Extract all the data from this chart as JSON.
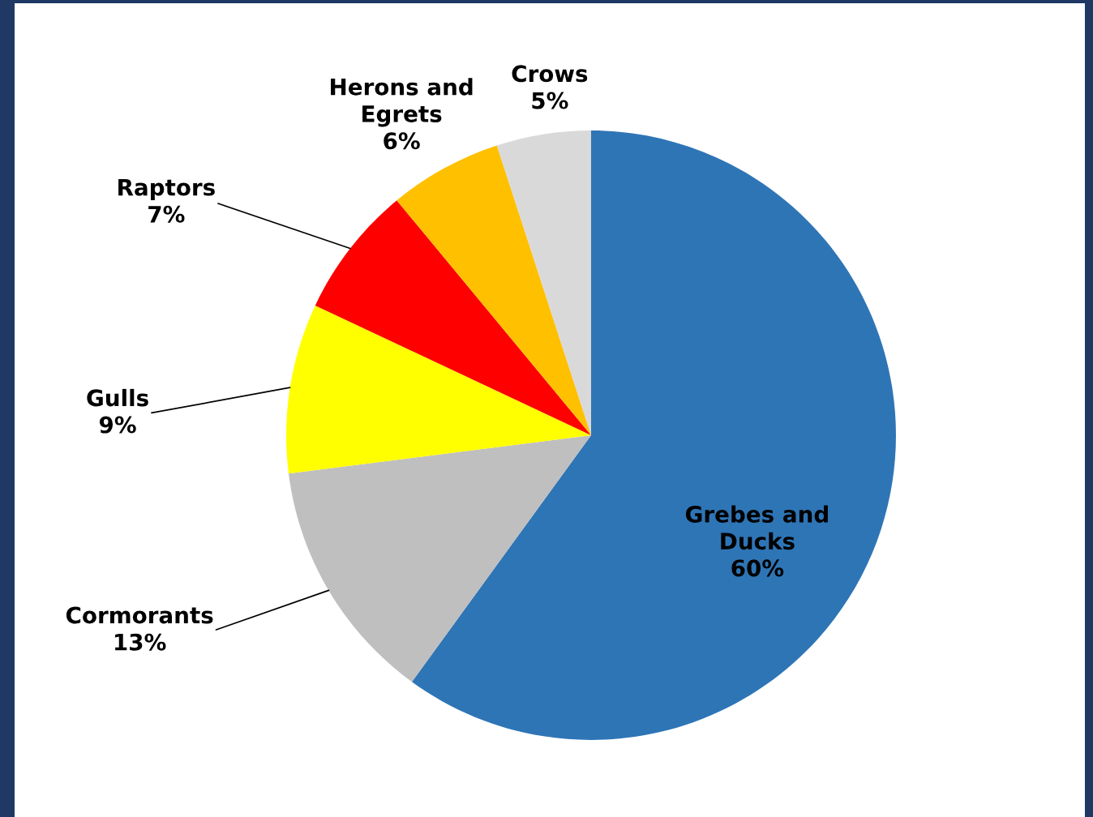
{
  "chart_data": {
    "type": "pie",
    "categories": [
      "Grebes and Ducks",
      "Cormorants",
      "Gulls",
      "Raptors",
      "Herons and Egrets",
      "Crows"
    ],
    "values": [
      60,
      13,
      9,
      7,
      6,
      5
    ],
    "value_labels": [
      "60%",
      "13%",
      "9%",
      "7%",
      "6%",
      "5%"
    ],
    "colors": [
      "#2e75b6",
      "#bfbfbf",
      "#ffff00",
      "#ff0000",
      "#ffc000",
      "#d9d9d9"
    ]
  }
}
